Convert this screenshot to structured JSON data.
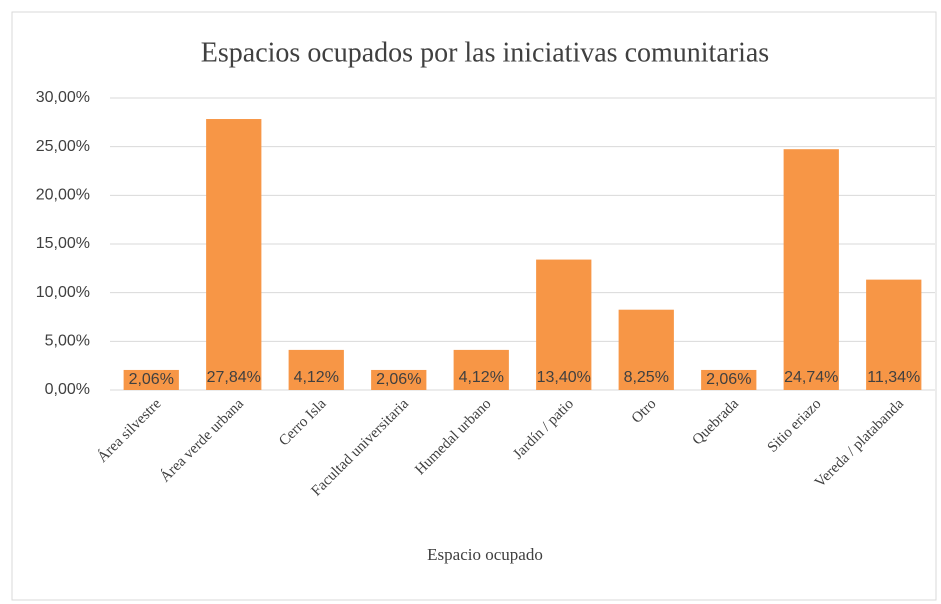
{
  "chart_data": {
    "type": "bar",
    "title": "Espacios ocupados por las iniciativas comunitarias",
    "x_label": "Espacio ocupado",
    "categories": [
      "Área silvestre",
      "Área verde urbana",
      "Cerro Isla",
      "Facultad universitaria",
      "Humedal urbano",
      "Jardín / patio",
      "Otro",
      "Quebrada",
      "Sitio eriazo",
      "Vereda / platabanda"
    ],
    "values": [
      2.06,
      27.84,
      4.12,
      2.06,
      4.12,
      13.4,
      8.25,
      2.06,
      24.74,
      11.34
    ],
    "value_labels": [
      "2,06%",
      "27,84%",
      "4,12%",
      "2,06%",
      "4,12%",
      "13,40%",
      "8,25%",
      "2,06%",
      "24,74%",
      "11,34%"
    ],
    "color": "#f79646",
    "ylim": [
      0,
      30
    ],
    "yticks": [
      {
        "value": 0,
        "label": "0,00%"
      },
      {
        "value": 5,
        "label": "5,00%"
      },
      {
        "value": 10,
        "label": "10,00%"
      },
      {
        "value": 15,
        "label": "15,00%"
      },
      {
        "value": 20,
        "label": "20,00%"
      },
      {
        "value": 25,
        "label": "25,00%"
      },
      {
        "value": 30,
        "label": "30,00%"
      }
    ],
    "grid": true
  }
}
